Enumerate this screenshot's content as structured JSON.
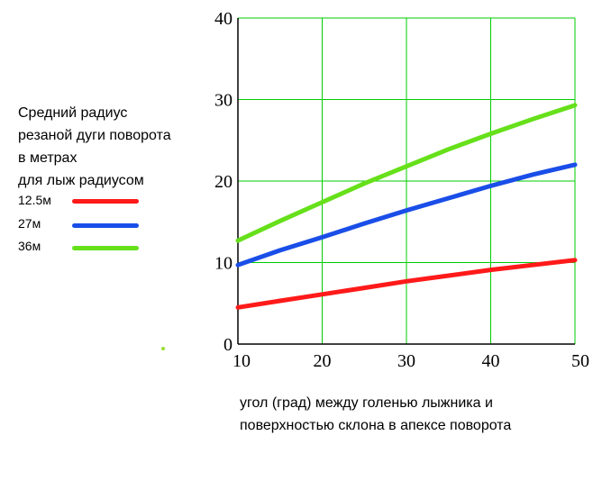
{
  "chart_data": {
    "type": "line",
    "title_lines": [
      "Средний радиус",
      "резаной дуги поворота",
      "в метрах",
      "для лыж радиусом"
    ],
    "xlabel_lines": [
      "угол (град) между голенью лыжника и",
      "поверхностью склона в апексе поворота"
    ],
    "xlim": [
      10,
      50
    ],
    "ylim": [
      0,
      40
    ],
    "x_ticks": [
      10,
      20,
      30,
      40,
      50
    ],
    "y_ticks": [
      0,
      10,
      20,
      30,
      40
    ],
    "x_tick_labels": [
      "10",
      "20",
      "30",
      "40",
      "50"
    ],
    "y_tick_labels": [
      "0",
      "10",
      "20",
      "30",
      "40"
    ],
    "grid": true,
    "grid_color": "#00cc00",
    "legend_placement": "left",
    "x": [
      10,
      15,
      20,
      25,
      30,
      35,
      40,
      45,
      50
    ],
    "series": [
      {
        "name": "12.5м",
        "color": "#ff1a1a",
        "values": [
          4.5,
          5.3,
          6.1,
          6.9,
          7.7,
          8.4,
          9.1,
          9.7,
          10.3
        ]
      },
      {
        "name": "27м",
        "color": "#1a4ee8",
        "values": [
          9.7,
          11.5,
          13.1,
          14.8,
          16.4,
          17.9,
          19.4,
          20.8,
          22.0
        ]
      },
      {
        "name": "36м",
        "color": "#66e01a",
        "values": [
          12.7,
          15.1,
          17.4,
          19.7,
          21.8,
          23.9,
          25.8,
          27.6,
          29.3
        ]
      }
    ]
  },
  "decor": {
    "stray_dot_color": "#99dd33"
  }
}
